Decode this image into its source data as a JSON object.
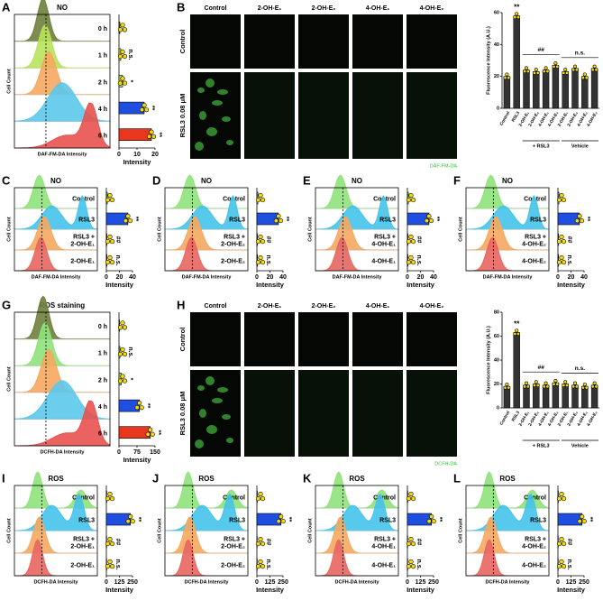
{
  "panels": [
    {
      "letter": "A",
      "title": "NO",
      "ylabel": "Cell Count",
      "xlabel": "DAF-FM-DA Intensity",
      "labels": [
        [
          "0 h"
        ],
        [
          "1 h"
        ],
        [
          "2 h"
        ],
        [
          "4 h"
        ],
        [
          "6 h"
        ]
      ],
      "curve_colors": [
        "#6f7f3c",
        "#b8e35a",
        "#f5a860",
        "#5cc8ea",
        "#e8524f"
      ],
      "chart": {
        "type": "bar",
        "orientation": "horizontal",
        "values": [
          0.5,
          1,
          2,
          14,
          18
        ],
        "colors": [
          "#6f7f3c",
          "#b8e35a",
          "#b8e35a",
          "#1f4fe0",
          "#e8361f"
        ],
        "xlim": [
          0,
          20
        ],
        "xticks": [
          0,
          10,
          20
        ],
        "xlabel": "Intensity",
        "annotations": [
          null,
          "n.s.",
          "*",
          "**",
          "**"
        ]
      }
    },
    {
      "letter": "B",
      "columns": [
        "Control",
        "2-OH-E₁",
        "2-OH-E₂",
        "4-OH-E₁",
        "4-OH-E₂"
      ],
      "rows": [
        "Control",
        "RSL3 0.08 μM"
      ],
      "caption": "DAF-FM-DA",
      "chart": {
        "type": "bar",
        "categories": [
          "Control",
          "RSL3",
          "2-OH-E₁",
          "2-OH-E₂",
          "4-OH-E₁",
          "4-OH-E₂",
          "2-OH-E₁",
          "2-OH-E₂",
          "4-OH-E₁",
          "4-OH-E₂"
        ],
        "values": [
          20,
          58,
          24,
          23,
          24,
          27,
          23,
          25,
          20,
          25
        ],
        "color": "#333333",
        "ylim": [
          0,
          60
        ],
        "yticks": [
          0,
          20,
          40,
          60
        ],
        "ylabel": "Fluorescence Intensity (A.U.)",
        "group_labels": [
          "+ RSL3",
          "Vehicle"
        ],
        "annotations": [
          "**",
          "##",
          "n.s."
        ]
      }
    },
    {
      "letter": "C",
      "title": "NO",
      "ylabel": "Cell Count",
      "xlabel": "DAF-FM-DA Intensity",
      "labels": [
        [
          "Control"
        ],
        [
          "RSL3"
        ],
        [
          "RSL3 +",
          "2-OH-E₁"
        ],
        [
          "2-OH-E₁"
        ]
      ],
      "curve_colors": [
        "#8fe27a",
        "#45c3ea",
        "#f5a860",
        "#e86660"
      ],
      "chart": {
        "type": "bar",
        "orientation": "horizontal",
        "values": [
          1.5,
          33,
          1,
          1
        ],
        "colors": [
          "#7ed957",
          "#1f4fe0",
          "#f5a860",
          "#e86660"
        ],
        "xlim": [
          0,
          40
        ],
        "xticks": [
          0,
          20,
          40
        ],
        "xlabel": "Intensity",
        "annotations": [
          null,
          "**",
          "##",
          "n.s."
        ]
      }
    },
    {
      "letter": "D",
      "title": "NO",
      "ylabel": "Cell Count",
      "xlabel": "DAF-FM-DA Intensity",
      "labels": [
        [
          "Control"
        ],
        [
          "RSL3"
        ],
        [
          "RSL3 +",
          "2-OH-E₂"
        ],
        [
          "2-OH-E₂"
        ]
      ],
      "curve_colors": [
        "#8fe27a",
        "#45c3ea",
        "#f5a860",
        "#e86660"
      ],
      "chart": {
        "type": "bar",
        "orientation": "horizontal",
        "values": [
          1.5,
          33,
          1,
          1
        ],
        "colors": [
          "#7ed957",
          "#1f4fe0",
          "#f5a860",
          "#e86660"
        ],
        "xlim": [
          0,
          40
        ],
        "xticks": [
          0,
          20,
          40
        ],
        "xlabel": "Intensity",
        "annotations": [
          null,
          "**",
          "##",
          "n.s."
        ]
      }
    },
    {
      "letter": "E",
      "title": "NO",
      "ylabel": "Cell Count",
      "xlabel": "DAF-FM-DA Intensity",
      "labels": [
        [
          "Control"
        ],
        [
          "RSL3"
        ],
        [
          "RSL3 +",
          "4-OH-E₁"
        ],
        [
          "4-OH-E₁"
        ]
      ],
      "curve_colors": [
        "#8fe27a",
        "#45c3ea",
        "#f5a860",
        "#e86660"
      ],
      "chart": {
        "type": "bar",
        "orientation": "horizontal",
        "values": [
          1.5,
          33,
          1,
          1
        ],
        "colors": [
          "#7ed957",
          "#1f4fe0",
          "#f5a860",
          "#e86660"
        ],
        "xlim": [
          0,
          40
        ],
        "xticks": [
          0,
          20,
          40
        ],
        "xlabel": "Intensity",
        "annotations": [
          null,
          "**",
          "##",
          "n.s."
        ]
      }
    },
    {
      "letter": "F",
      "title": "NO",
      "ylabel": "Cell Count",
      "xlabel": "DAF-FM-DA Intensity",
      "labels": [
        [
          "Control"
        ],
        [
          "RSL3"
        ],
        [
          "RSL3 +",
          "4-OH-E₂"
        ],
        [
          "4-OH-E₂"
        ]
      ],
      "curve_colors": [
        "#8fe27a",
        "#45c3ea",
        "#f5a860",
        "#e86660"
      ],
      "chart": {
        "type": "bar",
        "orientation": "horizontal",
        "values": [
          1.5,
          33,
          1,
          1
        ],
        "colors": [
          "#7ed957",
          "#1f4fe0",
          "#f5a860",
          "#e86660"
        ],
        "xlim": [
          0,
          40
        ],
        "xticks": [
          0,
          20,
          40
        ],
        "xlabel": "Intensity",
        "annotations": [
          null,
          "**",
          "##",
          "n.s."
        ]
      }
    },
    {
      "letter": "G",
      "title": "ROS staining",
      "ylabel": "Cell Count",
      "xlabel": "DCFH-DA Intensity",
      "labels": [
        [
          "0 h"
        ],
        [
          "1 h"
        ],
        [
          "2 h"
        ],
        [
          "4 h"
        ],
        [
          "6 h"
        ]
      ],
      "curve_colors": [
        "#6f7f3c",
        "#8fe27a",
        "#f5a860",
        "#5cc8ea",
        "#e8524f"
      ],
      "chart": {
        "type": "bar",
        "orientation": "horizontal",
        "values": [
          2,
          4,
          10,
          85,
          130
        ],
        "colors": [
          "#6f7f3c",
          "#8fe27a",
          "#8fe27a",
          "#1f4fe0",
          "#e8361f"
        ],
        "xlim": [
          0,
          150
        ],
        "xticks": [
          0,
          75,
          150
        ],
        "xlabel": "Intensity",
        "annotations": [
          null,
          "n.s.",
          "*",
          "**",
          "**"
        ]
      }
    },
    {
      "letter": "H",
      "columns": [
        "Control",
        "2-OH-E₁",
        "2-OH-E₂",
        "4-OH-E₁",
        "4-OH-E₂"
      ],
      "rows": [
        "Control",
        "RSL3 0.08 μM"
      ],
      "caption": "DCFH-DA",
      "chart": {
        "type": "bar",
        "categories": [
          "Control",
          "RSL3",
          "2-OH-E₁",
          "2-OH-E₂",
          "4-OH-E₁",
          "4-OH-E₂",
          "2-OH-E₁",
          "2-OH-E₂",
          "4-OH-E₁",
          "4-OH-E₂"
        ],
        "values": [
          18,
          63,
          19,
          20,
          19,
          21,
          20,
          19,
          18,
          19
        ],
        "color": "#333333",
        "ylim": [
          0,
          80
        ],
        "yticks": [
          0,
          20,
          40,
          60,
          80
        ],
        "ylabel": "Fluorescence Intensity (A.U.)",
        "group_labels": [
          "+ RSL3",
          "Vehicle"
        ],
        "annotations": [
          "**",
          "##",
          "n.s."
        ]
      }
    },
    {
      "letter": "I",
      "title": "ROS",
      "ylabel": "Cell Count",
      "xlabel": "DCFH-DA Intensity",
      "labels": [
        [
          "Control"
        ],
        [
          "RSL3"
        ],
        [
          "RSL3 +",
          "2-OH-E₁"
        ],
        [
          "2-OH-E₁"
        ]
      ],
      "curve_colors": [
        "#8fe27a",
        "#45c3ea",
        "#f5a860",
        "#e86660"
      ],
      "chart": {
        "type": "bar",
        "orientation": "horizontal",
        "values": [
          4,
          230,
          3,
          3
        ],
        "colors": [
          "#7ed957",
          "#1f4fe0",
          "#f5a860",
          "#e86660"
        ],
        "xlim": [
          0,
          250
        ],
        "xticks": [
          0,
          125,
          250
        ],
        "xlabel": "Intensity",
        "annotations": [
          null,
          "**",
          "##",
          "n.s."
        ]
      }
    },
    {
      "letter": "J",
      "title": "ROS",
      "ylabel": "Cell Count",
      "xlabel": "DCFH-DA Intensity",
      "labels": [
        [
          "Control"
        ],
        [
          "RSL3"
        ],
        [
          "RSL3 +",
          "2-OH-E₂"
        ],
        [
          "2-OH-E₂"
        ]
      ],
      "curve_colors": [
        "#8fe27a",
        "#45c3ea",
        "#f5a860",
        "#e86660"
      ],
      "chart": {
        "type": "bar",
        "orientation": "horizontal",
        "values": [
          4,
          230,
          3,
          3
        ],
        "colors": [
          "#7ed957",
          "#1f4fe0",
          "#f5a860",
          "#e86660"
        ],
        "xlim": [
          0,
          250
        ],
        "xticks": [
          0,
          125,
          250
        ],
        "xlabel": "Intensity",
        "annotations": [
          null,
          "**",
          "##",
          "n.s."
        ]
      }
    },
    {
      "letter": "K",
      "title": "ROS",
      "ylabel": "Cell Count",
      "xlabel": "DCFH-DA Intensity",
      "labels": [
        [
          "Control"
        ],
        [
          "RSL3"
        ],
        [
          "RSL3 +",
          "4-OH-E₁"
        ],
        [
          "4-OH-E₁"
        ]
      ],
      "curve_colors": [
        "#8fe27a",
        "#45c3ea",
        "#f5a860",
        "#e86660"
      ],
      "chart": {
        "type": "bar",
        "orientation": "horizontal",
        "values": [
          4,
          230,
          3,
          3
        ],
        "colors": [
          "#7ed957",
          "#1f4fe0",
          "#f5a860",
          "#e86660"
        ],
        "xlim": [
          0,
          250
        ],
        "xticks": [
          0,
          125,
          250
        ],
        "xlabel": "Intensity",
        "annotations": [
          null,
          "**",
          "##",
          "n.s."
        ]
      }
    },
    {
      "letter": "L",
      "title": "ROS",
      "ylabel": "Cell Count",
      "xlabel": "DCFH-DA Intensity",
      "labels": [
        [
          "Control"
        ],
        [
          "RSL3"
        ],
        [
          "RSL3 +",
          "4-OH-E₂"
        ],
        [
          "4-OH-E₂"
        ]
      ],
      "curve_colors": [
        "#8fe27a",
        "#45c3ea",
        "#f5a860",
        "#e86660"
      ],
      "chart": {
        "type": "bar",
        "orientation": "horizontal",
        "values": [
          4,
          230,
          3,
          3
        ],
        "colors": [
          "#7ed957",
          "#1f4fe0",
          "#f5a860",
          "#e86660"
        ],
        "xlim": [
          0,
          250
        ],
        "xticks": [
          0,
          125,
          250
        ],
        "xlabel": "Intensity",
        "annotations": [
          null,
          "**",
          "##",
          "n.s."
        ]
      }
    }
  ]
}
